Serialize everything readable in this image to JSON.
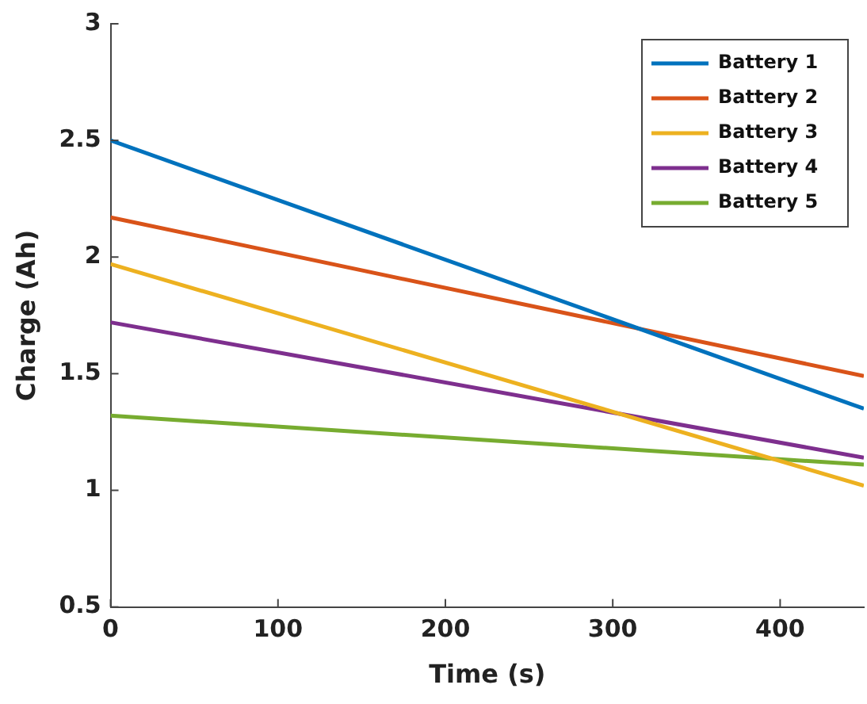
{
  "chart_data": {
    "type": "line",
    "xlabel": "Time (s)",
    "ylabel": "Charge (Ah)",
    "x": [
      0,
      450
    ],
    "series": [
      {
        "name": "Battery 1",
        "color": "#0072bd",
        "values": [
          2.5,
          1.35
        ]
      },
      {
        "name": "Battery 2",
        "color": "#d95319",
        "values": [
          2.17,
          1.49
        ]
      },
      {
        "name": "Battery 3",
        "color": "#edb120",
        "values": [
          1.97,
          1.02
        ]
      },
      {
        "name": "Battery 4",
        "color": "#7e2f8e",
        "values": [
          1.72,
          1.14
        ]
      },
      {
        "name": "Battery 5",
        "color": "#77ac30",
        "values": [
          1.32,
          1.11
        ]
      }
    ],
    "xlim": [
      0,
      450
    ],
    "xticks": [
      0,
      100,
      200,
      300,
      400
    ],
    "ylim": [
      0.5,
      3
    ],
    "yticks": [
      0.5,
      1,
      1.5,
      2,
      2.5,
      3
    ],
    "grid": false,
    "legend": "top right",
    "marker": "none",
    "line_style": "solid"
  }
}
